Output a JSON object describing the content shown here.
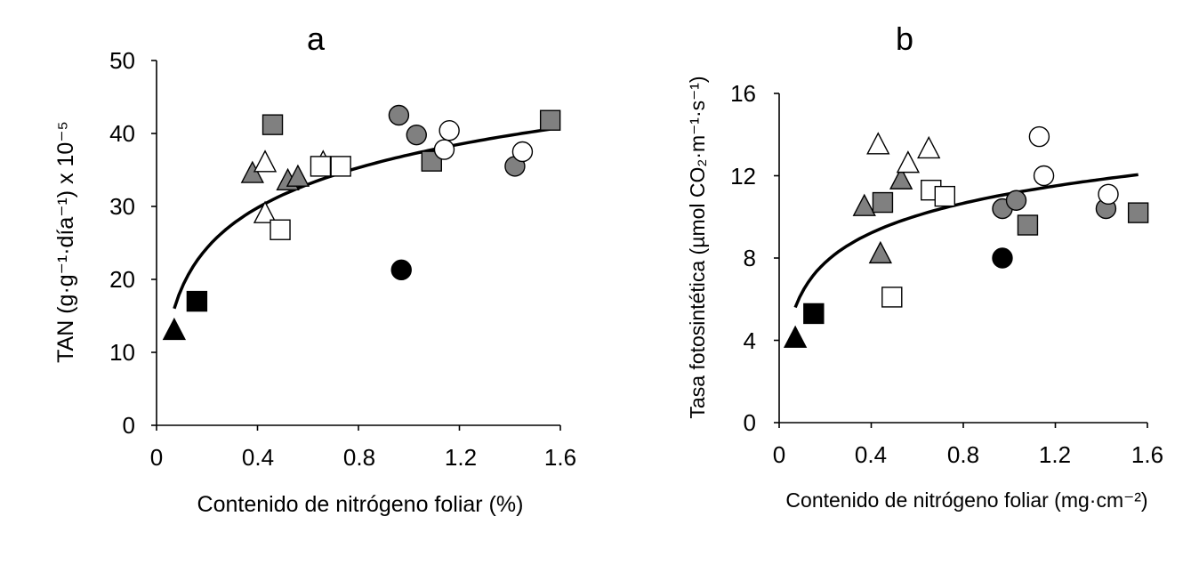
{
  "chart_data": [
    {
      "type": "scatter",
      "title": "a",
      "xlabel": "Contenido de nitrógeno foliar (%)",
      "ylabel": "TAN (g·g⁻¹·día⁻¹) x 10⁻⁵",
      "xlim": [
        0,
        1.6
      ],
      "ylim": [
        0,
        50
      ],
      "xticks": [
        "0",
        "0.4",
        "0.8",
        "1.2",
        "1.6"
      ],
      "yticks": [
        "0",
        "10",
        "20",
        "30",
        "40",
        "50"
      ],
      "fit": {
        "type": "logarithmic",
        "x_range": [
          0.07,
          1.56
        ],
        "y_range": [
          16,
          40.6
        ]
      },
      "points": [
        {
          "x": 0.07,
          "y": 13.0,
          "marker": "triangle",
          "color": "#000000"
        },
        {
          "x": 0.16,
          "y": 17.0,
          "marker": "square",
          "color": "#000000"
        },
        {
          "x": 0.97,
          "y": 21.3,
          "marker": "circle",
          "color": "#000000"
        },
        {
          "x": 0.38,
          "y": 34.5,
          "marker": "triangle",
          "color": "#808080"
        },
        {
          "x": 0.52,
          "y": 33.5,
          "marker": "triangle",
          "color": "#808080"
        },
        {
          "x": 0.56,
          "y": 34.0,
          "marker": "triangle",
          "color": "#808080"
        },
        {
          "x": 0.43,
          "y": 36.0,
          "marker": "triangle",
          "color": "#ffffff"
        },
        {
          "x": 0.43,
          "y": 29.0,
          "marker": "triangle",
          "color": "#ffffff"
        },
        {
          "x": 0.66,
          "y": 36.0,
          "marker": "triangle",
          "color": "#ffffff"
        },
        {
          "x": 0.46,
          "y": 41.2,
          "marker": "square",
          "color": "#808080"
        },
        {
          "x": 1.09,
          "y": 36.2,
          "marker": "square",
          "color": "#808080"
        },
        {
          "x": 1.56,
          "y": 41.8,
          "marker": "square",
          "color": "#808080"
        },
        {
          "x": 0.49,
          "y": 26.8,
          "marker": "square",
          "color": "#ffffff"
        },
        {
          "x": 0.65,
          "y": 35.5,
          "marker": "square",
          "color": "#ffffff"
        },
        {
          "x": 0.73,
          "y": 35.5,
          "marker": "square",
          "color": "#ffffff"
        },
        {
          "x": 0.96,
          "y": 42.5,
          "marker": "circle",
          "color": "#808080"
        },
        {
          "x": 1.03,
          "y": 39.8,
          "marker": "circle",
          "color": "#808080"
        },
        {
          "x": 1.42,
          "y": 35.5,
          "marker": "circle",
          "color": "#808080"
        },
        {
          "x": 1.16,
          "y": 40.4,
          "marker": "circle",
          "color": "#ffffff"
        },
        {
          "x": 1.14,
          "y": 37.8,
          "marker": "circle",
          "color": "#ffffff"
        },
        {
          "x": 1.45,
          "y": 37.5,
          "marker": "circle",
          "color": "#ffffff"
        }
      ]
    },
    {
      "type": "scatter",
      "title": "b",
      "xlabel": "Contenido de nitrógeno foliar (mg·cm⁻²)",
      "ylabel": "Tasa fotosintética (µmol CO₂·m⁻¹·s⁻¹)",
      "xlim": [
        0,
        1.6
      ],
      "ylim": [
        0,
        16
      ],
      "xticks": [
        "0",
        "0.4",
        "0.8",
        "1.2",
        "1.6"
      ],
      "yticks": [
        "0",
        "4",
        "8",
        "12",
        "16"
      ],
      "fit": {
        "type": "logarithmic",
        "x_range": [
          0.07,
          1.56
        ],
        "y_range": [
          5.6,
          12.05
        ]
      },
      "points": [
        {
          "x": 0.07,
          "y": 4.1,
          "marker": "triangle",
          "color": "#000000"
        },
        {
          "x": 0.15,
          "y": 5.3,
          "marker": "square",
          "color": "#000000"
        },
        {
          "x": 0.97,
          "y": 8.0,
          "marker": "circle",
          "color": "#000000"
        },
        {
          "x": 0.37,
          "y": 10.5,
          "marker": "triangle",
          "color": "#808080"
        },
        {
          "x": 0.44,
          "y": 8.2,
          "marker": "triangle",
          "color": "#808080"
        },
        {
          "x": 0.53,
          "y": 11.8,
          "marker": "triangle",
          "color": "#808080"
        },
        {
          "x": 0.43,
          "y": 13.5,
          "marker": "triangle",
          "color": "#ffffff"
        },
        {
          "x": 0.56,
          "y": 12.6,
          "marker": "triangle",
          "color": "#ffffff"
        },
        {
          "x": 0.65,
          "y": 13.3,
          "marker": "triangle",
          "color": "#ffffff"
        },
        {
          "x": 0.45,
          "y": 10.7,
          "marker": "square",
          "color": "#808080"
        },
        {
          "x": 1.08,
          "y": 9.6,
          "marker": "square",
          "color": "#808080"
        },
        {
          "x": 1.56,
          "y": 10.2,
          "marker": "square",
          "color": "#808080"
        },
        {
          "x": 0.49,
          "y": 6.1,
          "marker": "square",
          "color": "#ffffff"
        },
        {
          "x": 0.66,
          "y": 11.3,
          "marker": "square",
          "color": "#ffffff"
        },
        {
          "x": 0.72,
          "y": 11.0,
          "marker": "square",
          "color": "#ffffff"
        },
        {
          "x": 0.97,
          "y": 10.4,
          "marker": "circle",
          "color": "#808080"
        },
        {
          "x": 1.03,
          "y": 10.8,
          "marker": "circle",
          "color": "#808080"
        },
        {
          "x": 1.42,
          "y": 10.4,
          "marker": "circle",
          "color": "#808080"
        },
        {
          "x": 1.13,
          "y": 13.9,
          "marker": "circle",
          "color": "#ffffff"
        },
        {
          "x": 1.15,
          "y": 12.0,
          "marker": "circle",
          "color": "#ffffff"
        },
        {
          "x": 1.43,
          "y": 11.1,
          "marker": "circle",
          "color": "#ffffff"
        }
      ]
    }
  ]
}
